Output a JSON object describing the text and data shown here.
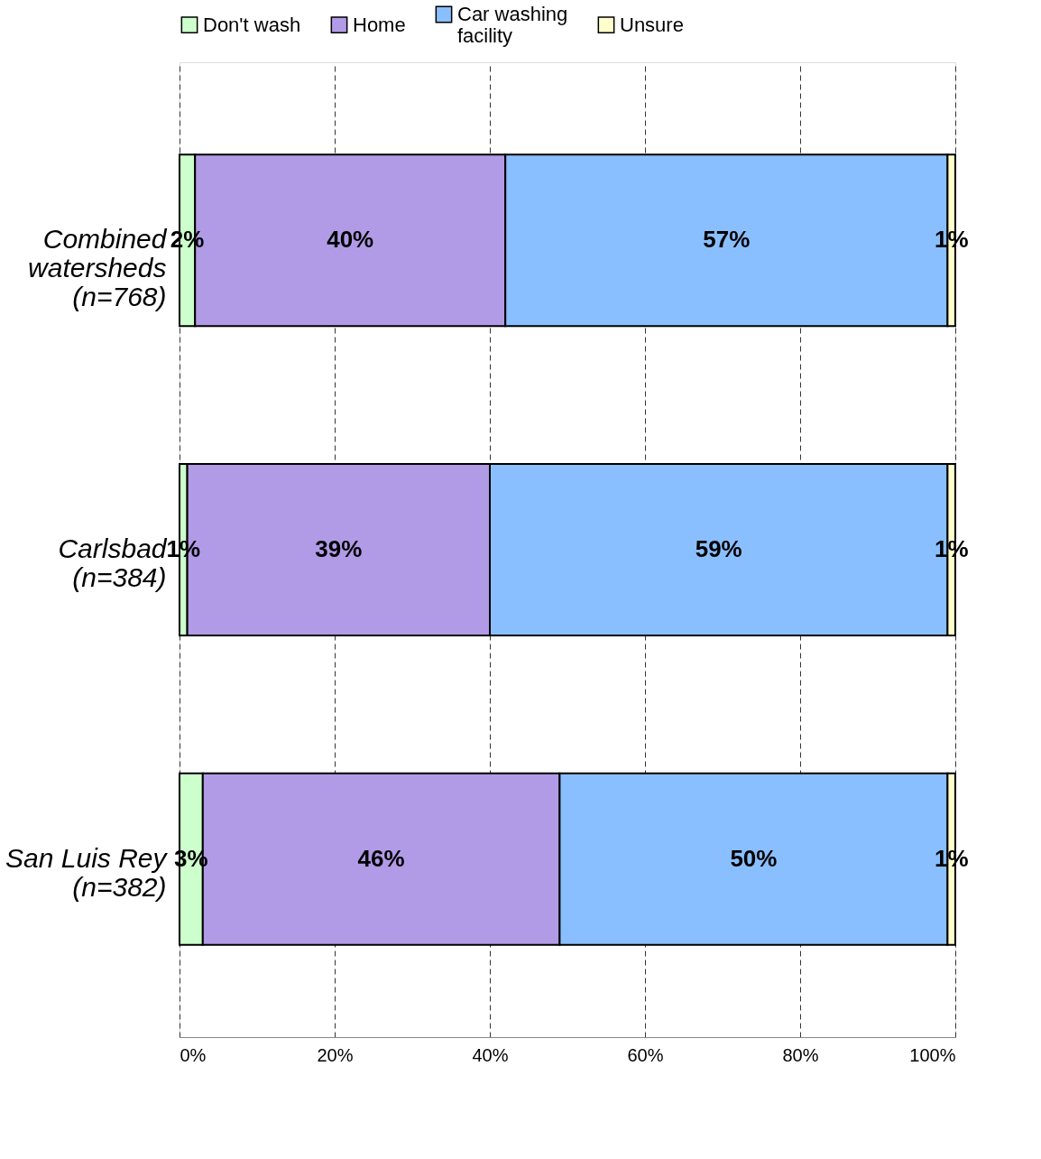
{
  "chart_data": {
    "type": "bar",
    "orientation": "horizontal",
    "stacked": true,
    "categories": [
      "Combined watersheds (n=768)",
      "Carlsbad (n=384)",
      "San Luis Rey (n=382)"
    ],
    "series": [
      {
        "name": "Don't wash",
        "color": "#ccffcc",
        "values": [
          2,
          1,
          3
        ],
        "value_labels": [
          "2%",
          "1%",
          "3%"
        ]
      },
      {
        "name": "Home",
        "color": "#b19be6",
        "values": [
          40,
          39,
          46
        ],
        "value_labels": [
          "40%",
          "39%",
          "46%"
        ]
      },
      {
        "name": "Car washing facility",
        "color": "#8abfff",
        "values": [
          57,
          59,
          50
        ],
        "value_labels": [
          "57%",
          "59%",
          "50%"
        ]
      },
      {
        "name": "Unsure",
        "color": "#ffffcc",
        "values": [
          1,
          1,
          1
        ],
        "value_labels": [
          "1%",
          "1%",
          "1%"
        ]
      }
    ],
    "xlim": [
      0,
      100
    ],
    "xticks": [
      {
        "value": 0,
        "label": "0%"
      },
      {
        "value": 20,
        "label": "20%"
      },
      {
        "value": 40,
        "label": "40%"
      },
      {
        "value": 60,
        "label": "60%"
      },
      {
        "value": 80,
        "label": "80%"
      },
      {
        "value": 100,
        "label": "100%"
      }
    ],
    "grid": "x",
    "legend": "top"
  }
}
